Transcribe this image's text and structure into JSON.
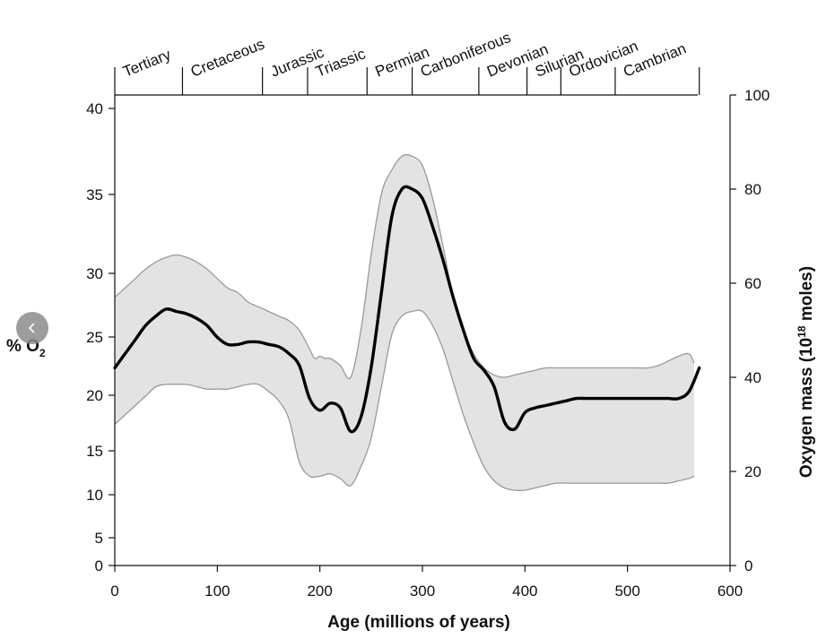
{
  "nav": {
    "icon": "chevron-left-icon",
    "color": "#8c8c8c"
  },
  "chart_data": {
    "type": "line",
    "title": "",
    "xlabel": "Age (millions of years)",
    "ylabel_left": {
      "main": "% O",
      "sub": "2"
    },
    "ylabel_right": {
      "before": "Oxygen mass (10",
      "sup": "18",
      "after": " moles)"
    },
    "xlim": [
      0,
      600
    ],
    "x_ticks": [
      0,
      100,
      200,
      300,
      400,
      500,
      600
    ],
    "left_ticks": [
      0,
      5,
      10,
      15,
      20,
      25,
      30,
      35,
      40
    ],
    "ylim_right": [
      0,
      100
    ],
    "right_ticks": [
      0,
      20,
      40,
      60,
      80,
      100
    ],
    "grid": false,
    "periods": [
      {
        "name": "Tertiary",
        "start": 0,
        "end": 66
      },
      {
        "name": "Cretaceous",
        "start": 66,
        "end": 144
      },
      {
        "name": "Jurassic",
        "start": 144,
        "end": 188
      },
      {
        "name": "Triassic",
        "start": 188,
        "end": 246
      },
      {
        "name": "Permian",
        "start": 246,
        "end": 290
      },
      {
        "name": "Carboniferous",
        "start": 290,
        "end": 355
      },
      {
        "name": "Devonian",
        "start": 355,
        "end": 402
      },
      {
        "name": "Silurian",
        "start": 402,
        "end": 435
      },
      {
        "name": "Ordovician",
        "start": 435,
        "end": 488
      },
      {
        "name": "Cambrian",
        "start": 488,
        "end": 570
      }
    ],
    "series": [
      {
        "role": "central-estimate",
        "color": "#000000",
        "x": [
          0,
          10,
          20,
          30,
          40,
          50,
          60,
          70,
          80,
          90,
          100,
          110,
          120,
          130,
          140,
          150,
          160,
          170,
          180,
          190,
          200,
          210,
          220,
          230,
          240,
          250,
          260,
          270,
          280,
          290,
          300,
          310,
          320,
          330,
          340,
          350,
          360,
          370,
          380,
          390,
          400,
          410,
          420,
          430,
          440,
          450,
          460,
          470,
          480,
          490,
          500,
          510,
          520,
          530,
          540,
          550,
          560,
          570
        ],
        "y": [
          42,
          45,
          48,
          51,
          53,
          54.5,
          54,
          53.5,
          52.5,
          51,
          48.5,
          47,
          47,
          47.5,
          47.5,
          47,
          46.5,
          45,
          42.5,
          35.5,
          33,
          34.5,
          33.5,
          28.5,
          31.5,
          42,
          58,
          74,
          80,
          80,
          78,
          72,
          65,
          57,
          50,
          44,
          41.5,
          38,
          30.5,
          29,
          32.5,
          33.5,
          34,
          34.5,
          35,
          35.5,
          35.5,
          35.5,
          35.5,
          35.5,
          35.5,
          35.5,
          35.5,
          35.5,
          35.5,
          35.5,
          37,
          42
        ]
      },
      {
        "role": "upper-bound",
        "color": "#999999",
        "x": [
          0,
          10,
          20,
          30,
          40,
          50,
          60,
          70,
          80,
          90,
          100,
          110,
          120,
          130,
          140,
          150,
          160,
          170,
          180,
          190,
          195,
          200,
          205,
          210,
          220,
          230,
          240,
          250,
          260,
          270,
          280,
          290,
          300,
          310,
          320,
          330,
          340,
          350,
          360,
          370,
          380,
          390,
          400,
          410,
          420,
          430,
          440,
          450,
          460,
          470,
          480,
          490,
          500,
          510,
          520,
          530,
          540,
          550,
          560,
          565
        ],
        "y": [
          57,
          59,
          61,
          63,
          64.5,
          65.5,
          66,
          65.5,
          64.5,
          63,
          61,
          59,
          58,
          56,
          55,
          54,
          53,
          52,
          50,
          46,
          44,
          44.5,
          44,
          44,
          42.5,
          40,
          50,
          66,
          79,
          84,
          87,
          87,
          85,
          78,
          68,
          57,
          50,
          45,
          42,
          40.5,
          40,
          40.5,
          41,
          41.5,
          42,
          42,
          42,
          42,
          42,
          42,
          42,
          42,
          42,
          42,
          42,
          42.5,
          43.5,
          44.5,
          45,
          43
        ]
      },
      {
        "role": "lower-bound",
        "color": "#999999",
        "x": [
          0,
          10,
          20,
          30,
          40,
          50,
          60,
          70,
          80,
          90,
          100,
          110,
          120,
          130,
          140,
          150,
          160,
          170,
          180,
          190,
          200,
          210,
          220,
          230,
          240,
          250,
          260,
          270,
          280,
          290,
          300,
          310,
          320,
          330,
          340,
          350,
          360,
          370,
          380,
          390,
          400,
          410,
          420,
          430,
          440,
          450,
          460,
          470,
          480,
          490,
          500,
          510,
          520,
          530,
          540,
          550,
          560,
          565
        ],
        "y": [
          30,
          32,
          34,
          36,
          38,
          38.5,
          38.5,
          38.5,
          38,
          37.5,
          37.5,
          37.5,
          38,
          38.5,
          38.5,
          37,
          35,
          31,
          22,
          19,
          19,
          19.5,
          18.5,
          17,
          21,
          27,
          38,
          49,
          53,
          54,
          54,
          51,
          46,
          39,
          32,
          26,
          21,
          18,
          16.5,
          16,
          16,
          16.5,
          17,
          17.5,
          17.5,
          17.5,
          17.5,
          17.5,
          17.5,
          17.5,
          17.5,
          17.5,
          17.5,
          17.5,
          17.5,
          18,
          18.5,
          19
        ]
      }
    ],
    "band_fill": "#e3e3e3"
  }
}
